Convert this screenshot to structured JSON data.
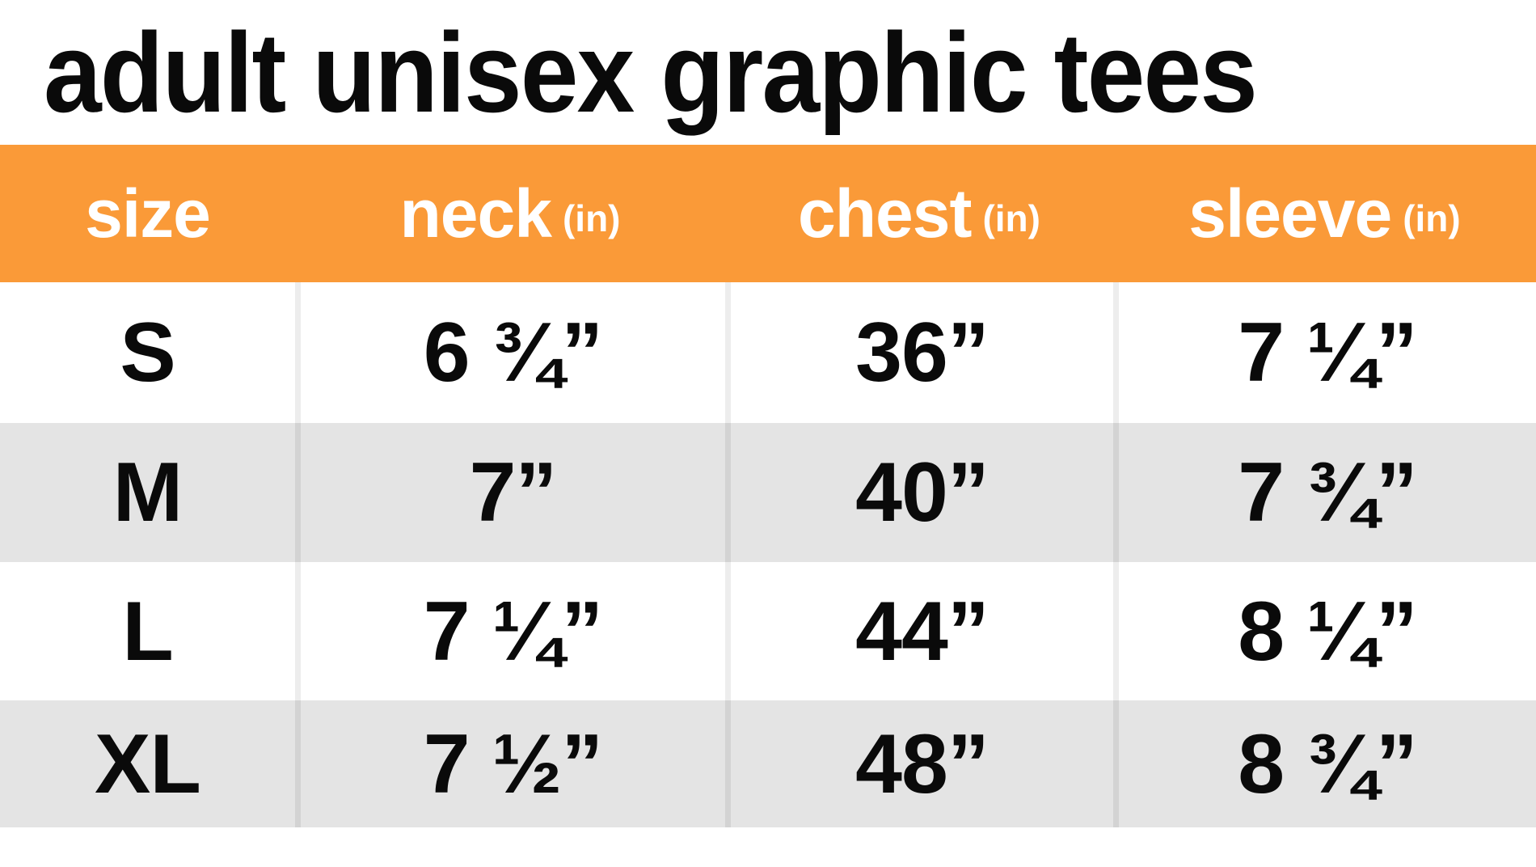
{
  "title": "adult unisex graphic tees",
  "colors": {
    "header_bg": "#FA9A38",
    "header_text": "#FFFFFF",
    "alt_row_bg": "#E4E4E4",
    "text": "#0A0A0A",
    "divider": "#E0E0E0"
  },
  "chart_data": {
    "type": "table",
    "title": "adult unisex graphic tees",
    "units": "inches",
    "columns": [
      {
        "label": "size",
        "unit": ""
      },
      {
        "label": "neck",
        "unit": "(in)"
      },
      {
        "label": "chest",
        "unit": "(in)"
      },
      {
        "label": "sleeve",
        "unit": "(in)"
      }
    ],
    "rows": [
      {
        "size": "S",
        "neck": "6 ¾”",
        "chest": "36”",
        "sleeve": "7 ¼”"
      },
      {
        "size": "M",
        "neck": "7”",
        "chest": "40”",
        "sleeve": "7 ¾”"
      },
      {
        "size": "L",
        "neck": "7 ¼”",
        "chest": "44”",
        "sleeve": "8 ¼”"
      },
      {
        "size": "XL",
        "neck": "7 ½”",
        "chest": "48”",
        "sleeve": "8 ¾”"
      }
    ],
    "numeric_values_in": {
      "sizes": [
        "S",
        "M",
        "L",
        "XL"
      ],
      "neck": [
        6.75,
        7,
        7.25,
        7.5
      ],
      "chest": [
        36,
        40,
        44,
        48
      ],
      "sleeve": [
        7.25,
        7.75,
        8.25,
        8.75
      ]
    }
  }
}
